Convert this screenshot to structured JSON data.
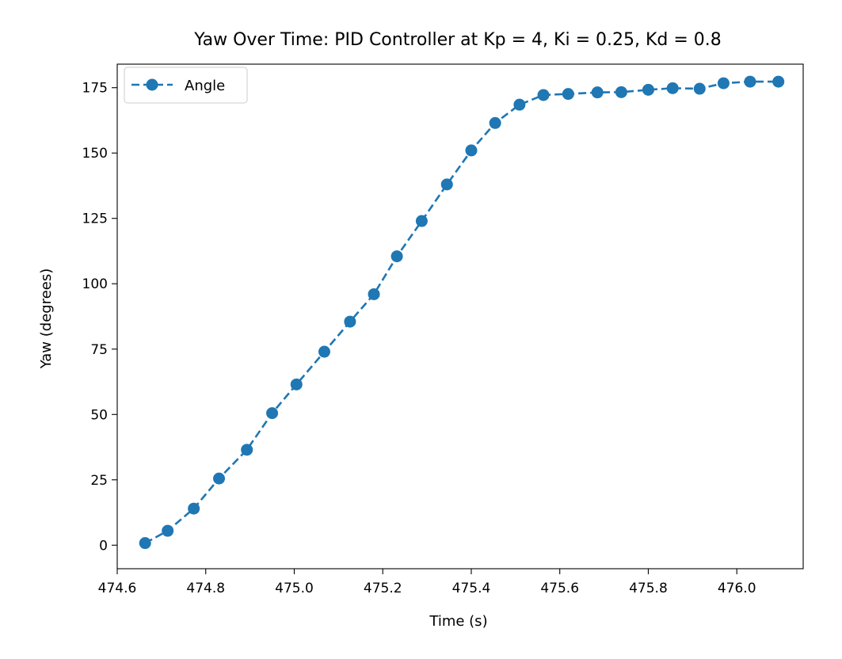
{
  "chart_data": {
    "type": "line",
    "title": "Yaw Over Time: PID Controller at Kp = 4, Ki = 0.25, Kd = 0.8",
    "xlabel": "Time (s)",
    "ylabel": "Yaw (degrees)",
    "xlim": [
      474.6,
      476.15
    ],
    "ylim": [
      -9,
      184
    ],
    "xticks": [
      474.6,
      474.8,
      475.0,
      475.2,
      475.4,
      475.6,
      475.8,
      476.0
    ],
    "xtick_labels": [
      "474.6",
      "474.8",
      "475.0",
      "475.2",
      "475.4",
      "475.6",
      "475.8",
      "476.0"
    ],
    "yticks": [
      0,
      25,
      50,
      75,
      100,
      125,
      150,
      175
    ],
    "ytick_labels": [
      "0",
      "25",
      "50",
      "75",
      "100",
      "125",
      "150",
      "175"
    ],
    "grid": false,
    "legend_position": "top-left",
    "series": [
      {
        "name": "Angle",
        "color": "#1f77b4",
        "line_style": "dashed",
        "marker": "circle",
        "x": [
          474.663,
          474.714,
          474.773,
          474.83,
          474.893,
          474.95,
          475.005,
          475.068,
          475.126,
          475.18,
          475.232,
          475.288,
          475.345,
          475.4,
          475.454,
          475.509,
          475.563,
          475.619,
          475.685,
          475.739,
          475.8,
          475.855,
          475.916,
          475.97,
          476.03,
          476.094
        ],
        "y": [
          0.8,
          5.5,
          14,
          25.5,
          36.5,
          50.5,
          61.5,
          74,
          85.5,
          96,
          110.5,
          124,
          138,
          151,
          161.5,
          168.5,
          172.2,
          172.6,
          173.2,
          173.3,
          174.2,
          174.8,
          174.6,
          176.7,
          177.3,
          177.3
        ]
      }
    ]
  }
}
